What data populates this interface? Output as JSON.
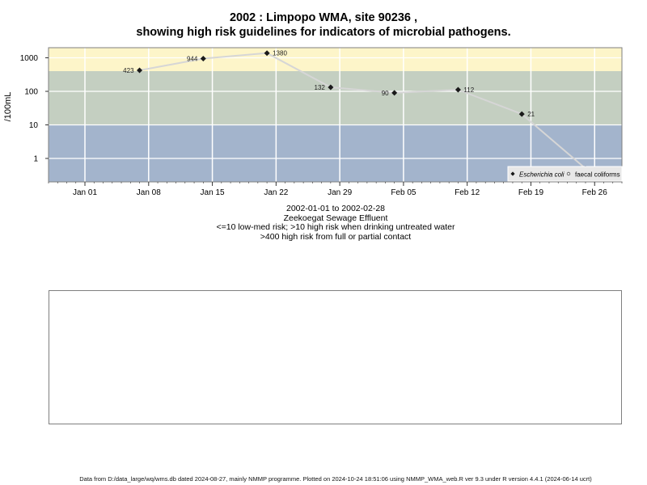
{
  "chart_data": {
    "type": "line",
    "title_line1": "2002 : Limpopo WMA, site 90236 ,",
    "title_line2": "showing high risk guidelines for indicators of microbial pathogens.",
    "ylabel": "/100mL",
    "y_scale": "log",
    "ylim": [
      0.2,
      2000
    ],
    "y_ticks": [
      1,
      10,
      100,
      1000
    ],
    "x_range": [
      "2001-12-28",
      "2002-03-01"
    ],
    "x_ticks": [
      {
        "date": "2002-01-01",
        "label": "Jan 01"
      },
      {
        "date": "2002-01-08",
        "label": "Jan 08"
      },
      {
        "date": "2002-01-15",
        "label": "Jan 15"
      },
      {
        "date": "2002-01-22",
        "label": "Jan 22"
      },
      {
        "date": "2002-01-29",
        "label": "Jan 29"
      },
      {
        "date": "2002-02-05",
        "label": "Feb 05"
      },
      {
        "date": "2002-02-12",
        "label": "Feb 12"
      },
      {
        "date": "2002-02-19",
        "label": "Feb 19"
      },
      {
        "date": "2002-02-26",
        "label": "Feb 26"
      }
    ],
    "risk_bands": [
      {
        "from": 400,
        "to": 2000,
        "color": "#fdf5c9"
      },
      {
        "from": 10,
        "to": 400,
        "color": "#c4cfc1"
      },
      {
        "from": 0.2,
        "to": 10,
        "color": "#a3b4cc"
      }
    ],
    "series": [
      {
        "name": "Escherichia coli",
        "marker": "filled-diamond",
        "color": "#1a1a1a",
        "x": [
          "2002-01-07",
          "2002-01-14",
          "2002-01-21",
          "2002-01-28",
          "2002-02-04",
          "2002-02-11",
          "2002-02-18",
          "2002-02-25"
        ],
        "values": [
          423,
          944,
          1380,
          132,
          90,
          112,
          21,
          0.5
        ],
        "labels": [
          "423",
          "944",
          "1380",
          "132",
          "90",
          "112",
          "21",
          ""
        ]
      },
      {
        "name": "faecal coliforms",
        "marker": "open-circle",
        "color": "#555555",
        "x": [
          "2002-02-25"
        ],
        "values": [
          0.3
        ],
        "labels": [
          ""
        ]
      }
    ],
    "legend_placement": "bottom-right"
  },
  "subtitle": {
    "date_range": "2002-01-01 to 2002-02-28",
    "site_name": "Zeekoegat Sewage Effluent",
    "guideline_1": "<=10 low-med risk; >10 high risk when drinking untreated water",
    "guideline_2": ">400 high risk from full or partial contact"
  },
  "footer": "Data from D:/data_large/wq/wms.db dated 2024-08-27, mainly NMMP programme. Plotted on 2024-10-24 18:51:06 using NMMP_WMA_web.R ver 9.3 under R version 4.4.1 (2024-06-14 ucrt)",
  "colors": {
    "line": "#d6d6d6",
    "grid": "#ffffff",
    "axis": "#7f7f7f"
  }
}
